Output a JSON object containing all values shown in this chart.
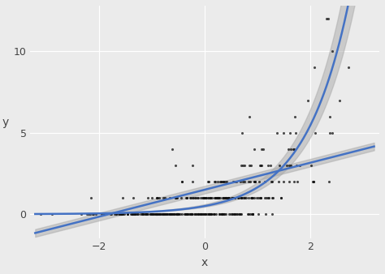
{
  "xlabel": "x",
  "ylabel": "y",
  "xlim": [
    -3.3,
    3.3
  ],
  "ylim": [
    -1.5,
    12.8
  ],
  "xticks": [
    -2,
    0,
    2
  ],
  "yticks": [
    0,
    5,
    10
  ],
  "background_color": "#EBEBEB",
  "grid_color": "#FFFFFF",
  "dot_color": "#111111",
  "dot_size": 5,
  "dot_alpha": 0.75,
  "line_color": "#4472C4",
  "line_width": 1.8,
  "ci_color": "#AAAAAA",
  "ci_alpha": 0.5,
  "seed": 42,
  "n_points": 400,
  "poisson_beta0": -0.7,
  "poisson_beta1": 1.2,
  "lm_slope": 0.83,
  "lm_intercept": 1.5,
  "lm_se": 0.12
}
